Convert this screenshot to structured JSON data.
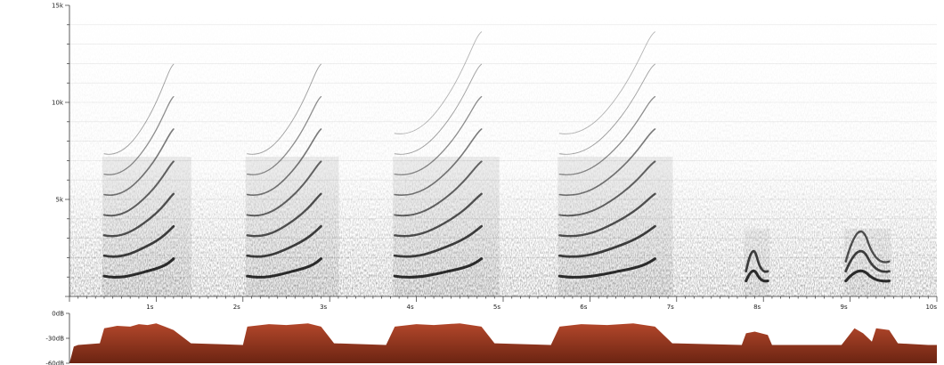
{
  "spectrogram": {
    "y_ticks": [
      {
        "value": 15000,
        "label": "15k"
      },
      {
        "value": 10000,
        "label": "10k"
      },
      {
        "value": 5000,
        "label": "5k"
      }
    ],
    "y_range_hz": [
      0,
      15000
    ],
    "time_range_s": [
      0,
      10
    ],
    "x_ticks": [
      {
        "value": 1,
        "label": "1s"
      },
      {
        "value": 2,
        "label": "2s"
      },
      {
        "value": 3,
        "label": "3s"
      },
      {
        "value": 4,
        "label": "4s"
      },
      {
        "value": 5,
        "label": "5s"
      },
      {
        "value": 6,
        "label": "6s"
      },
      {
        "value": 7,
        "label": "7s"
      },
      {
        "value": 8,
        "label": "8s"
      },
      {
        "value": 9,
        "label": "9s"
      },
      {
        "value": 10,
        "label": "10s"
      }
    ],
    "calls": [
      {
        "start_s": 0.4,
        "end_s": 1.2,
        "harmonics": 7
      },
      {
        "start_s": 2.05,
        "end_s": 2.9,
        "harmonics": 7
      },
      {
        "start_s": 3.75,
        "end_s": 4.75,
        "harmonics": 8
      },
      {
        "start_s": 5.65,
        "end_s": 6.75,
        "harmonics": 8
      },
      {
        "start_s": 7.8,
        "end_s": 8.05,
        "harmonics": 2
      },
      {
        "start_s": 8.95,
        "end_s": 9.45,
        "harmonics": 3
      }
    ],
    "colors": {
      "ink": "#111111",
      "grid": "#e6e6e6"
    }
  },
  "waveform": {
    "y_ticks": [
      {
        "value": 0,
        "label": "0dB"
      },
      {
        "value": -30,
        "label": "-30dB"
      },
      {
        "value": -60,
        "label": "-60dB"
      }
    ],
    "db_range": [
      -60,
      0
    ],
    "envelope_db": [
      [
        0,
        -60
      ],
      [
        0.05,
        -40
      ],
      [
        0.1,
        -38
      ],
      [
        0.35,
        -36
      ],
      [
        0.4,
        -18
      ],
      [
        0.55,
        -15
      ],
      [
        0.7,
        -16
      ],
      [
        0.8,
        -13
      ],
      [
        0.9,
        -14
      ],
      [
        1.0,
        -12
      ],
      [
        1.1,
        -16
      ],
      [
        1.2,
        -20
      ],
      [
        1.4,
        -36
      ],
      [
        2.0,
        -38
      ],
      [
        2.05,
        -16
      ],
      [
        2.3,
        -13
      ],
      [
        2.5,
        -14
      ],
      [
        2.75,
        -12
      ],
      [
        2.9,
        -16
      ],
      [
        3.05,
        -36
      ],
      [
        3.65,
        -38
      ],
      [
        3.75,
        -16
      ],
      [
        4.0,
        -13
      ],
      [
        4.2,
        -14
      ],
      [
        4.5,
        -12
      ],
      [
        4.75,
        -16
      ],
      [
        4.9,
        -36
      ],
      [
        5.55,
        -38
      ],
      [
        5.65,
        -16
      ],
      [
        5.9,
        -13
      ],
      [
        6.2,
        -14
      ],
      [
        6.5,
        -12
      ],
      [
        6.75,
        -16
      ],
      [
        6.95,
        -36
      ],
      [
        7.75,
        -38
      ],
      [
        7.8,
        -24
      ],
      [
        7.9,
        -22
      ],
      [
        8.05,
        -26
      ],
      [
        8.1,
        -38
      ],
      [
        8.9,
        -38
      ],
      [
        9.05,
        -18
      ],
      [
        9.15,
        -24
      ],
      [
        9.25,
        -34
      ],
      [
        9.3,
        -18
      ],
      [
        9.45,
        -20
      ],
      [
        9.55,
        -36
      ],
      [
        9.9,
        -38
      ],
      [
        10,
        -38
      ]
    ],
    "colors": {
      "fill_top": "#b3472b",
      "fill_bottom": "#6b2412"
    }
  }
}
